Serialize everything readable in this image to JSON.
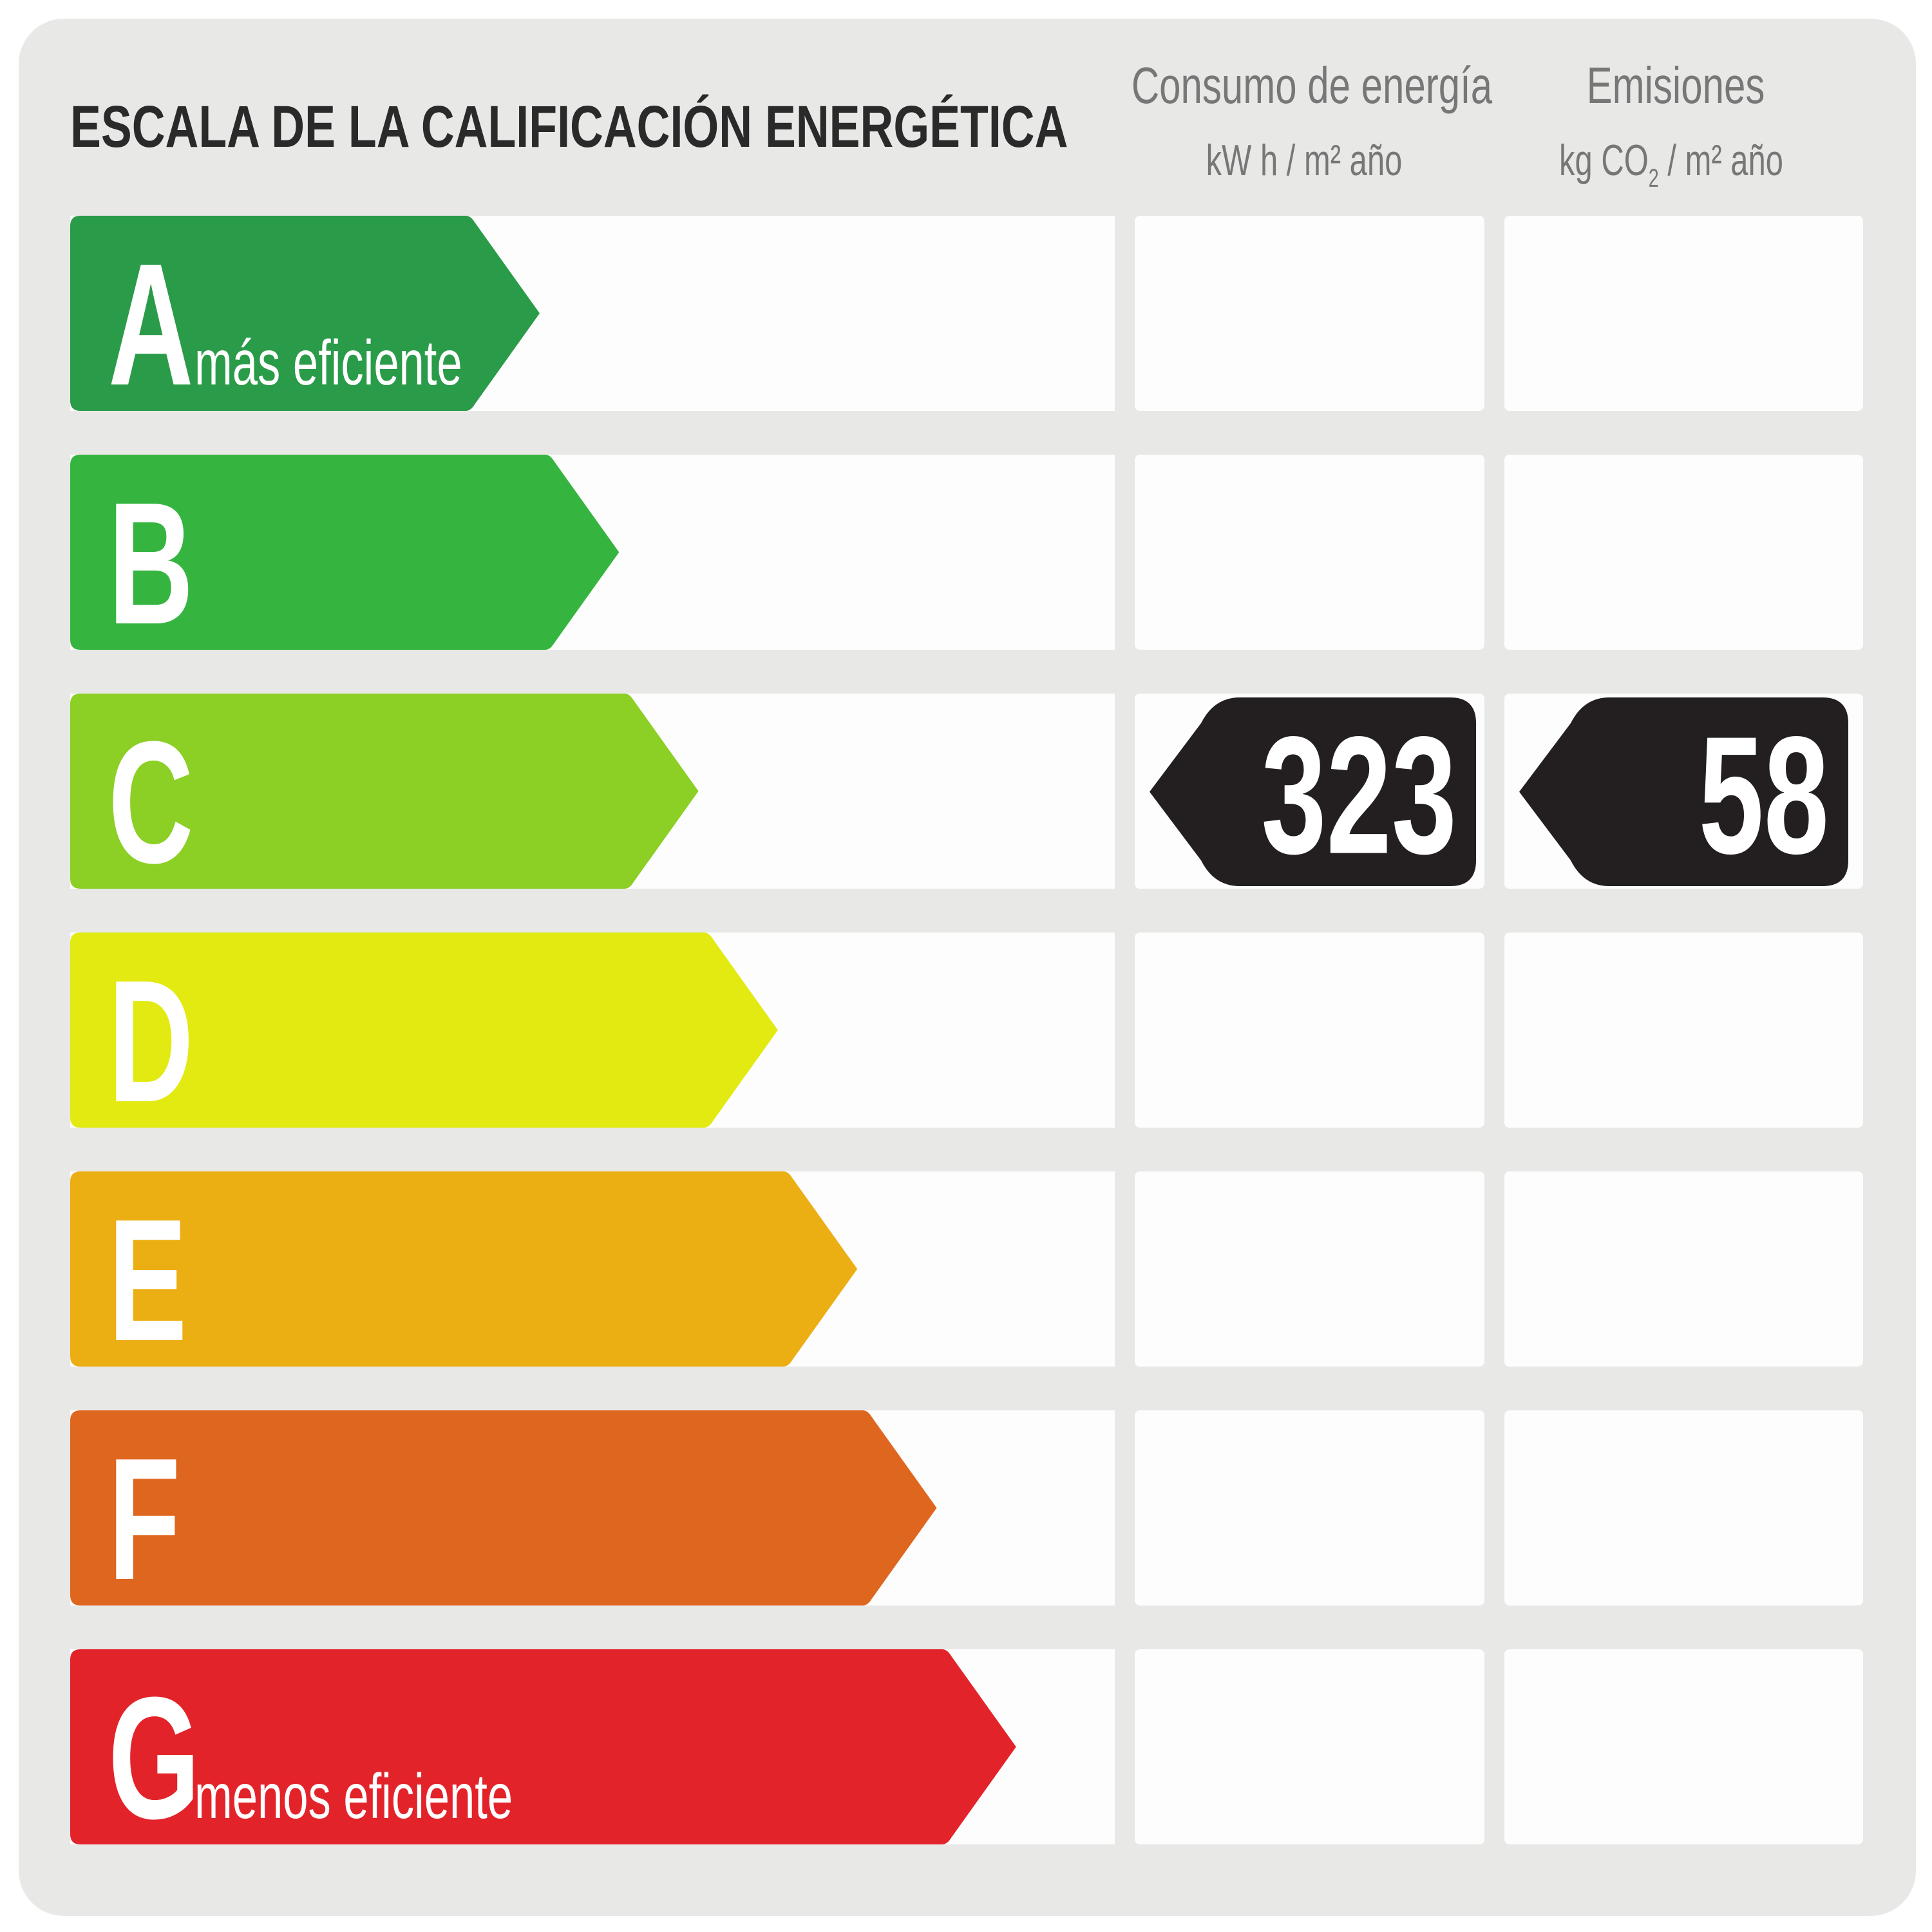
{
  "title": "ESCALA DE LA CALIFICACIÓN ENERGÉTICA",
  "columns": {
    "consumo": {
      "title": "Consumo de energía",
      "unit": "kW h / m² año"
    },
    "emisiones": {
      "title": "Emisiones",
      "unit_prefix": "kg CO",
      "unit_sub": "2",
      "unit_suffix": " / m² año"
    }
  },
  "rows": [
    {
      "letter": "A",
      "subtitle": "más eficiente",
      "color": "#2a9b48"
    },
    {
      "letter": "B",
      "subtitle": "",
      "color": "#35b540"
    },
    {
      "letter": "C",
      "subtitle": "",
      "color": "#8ccf25"
    },
    {
      "letter": "D",
      "subtitle": "",
      "color": "#e2ea12"
    },
    {
      "letter": "E",
      "subtitle": "",
      "color": "#ebae13"
    },
    {
      "letter": "F",
      "subtitle": "",
      "color": "#df661f"
    },
    {
      "letter": "G",
      "subtitle": "menos eficiente",
      "color": "#e3232a"
    }
  ],
  "rating": {
    "row": "C",
    "consumo_value": "323",
    "emisiones_value": "58",
    "badge_color": "#231f20"
  }
}
